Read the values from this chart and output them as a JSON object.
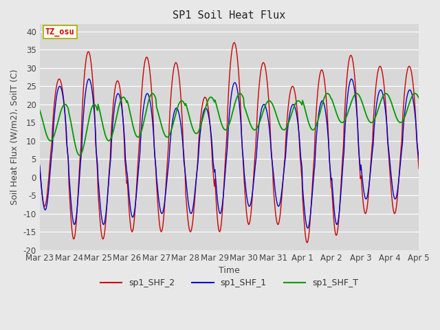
{
  "title": "SP1 Soil Heat Flux",
  "xlabel": "Time",
  "ylabel": "Soil Heat Flux (W/m2), SoilT (C)",
  "ylim": [
    -20,
    42
  ],
  "x_tick_labels": [
    "Mar 23",
    "Mar 24",
    "Mar 25",
    "Mar 26",
    "Mar 27",
    "Mar 28",
    "Mar 29",
    "Mar 30",
    "Mar 31",
    "Apr 1",
    "Apr 2",
    "Apr 3",
    "Apr 4",
    "Apr 5"
  ],
  "color_shf2": "#cc0000",
  "color_shf1": "#0000cc",
  "color_shft": "#009900",
  "fig_bg": "#e8e8e8",
  "plot_bg": "#d8d8d8",
  "annotation_text": "TZ_osu",
  "annotation_color": "#cc0000",
  "annotation_bg": "#fffff0",
  "annotation_border": "#aaaa00",
  "legend_labels": [
    "sp1_SHF_2",
    "sp1_SHF_1",
    "sp1_SHF_T"
  ],
  "title_fontsize": 11,
  "label_fontsize": 9,
  "tick_fontsize": 8.5,
  "shf2_peaks": [
    27,
    34.5,
    26.5,
    33,
    31.5,
    22,
    37,
    31.5,
    25,
    29.5,
    33.5,
    30.5
  ],
  "shf2_troughs": [
    -8,
    -17,
    -17,
    -15,
    -15,
    -15,
    -15,
    -13,
    -13,
    -18,
    -16,
    -10
  ],
  "shf1_peaks": [
    25,
    27,
    23,
    23,
    19,
    19,
    26,
    20,
    20,
    21,
    27,
    24
  ],
  "shf1_troughs": [
    -9,
    -13,
    -13,
    -11,
    -10,
    -10,
    -10,
    -8,
    -8,
    -14,
    -13,
    -6
  ],
  "shft_bases": [
    15,
    13,
    16,
    17,
    16,
    17,
    18,
    17,
    17,
    18,
    19,
    19
  ],
  "shft_amps": [
    5,
    7,
    6,
    6,
    5,
    5,
    5,
    4,
    4,
    5,
    4,
    4
  ]
}
